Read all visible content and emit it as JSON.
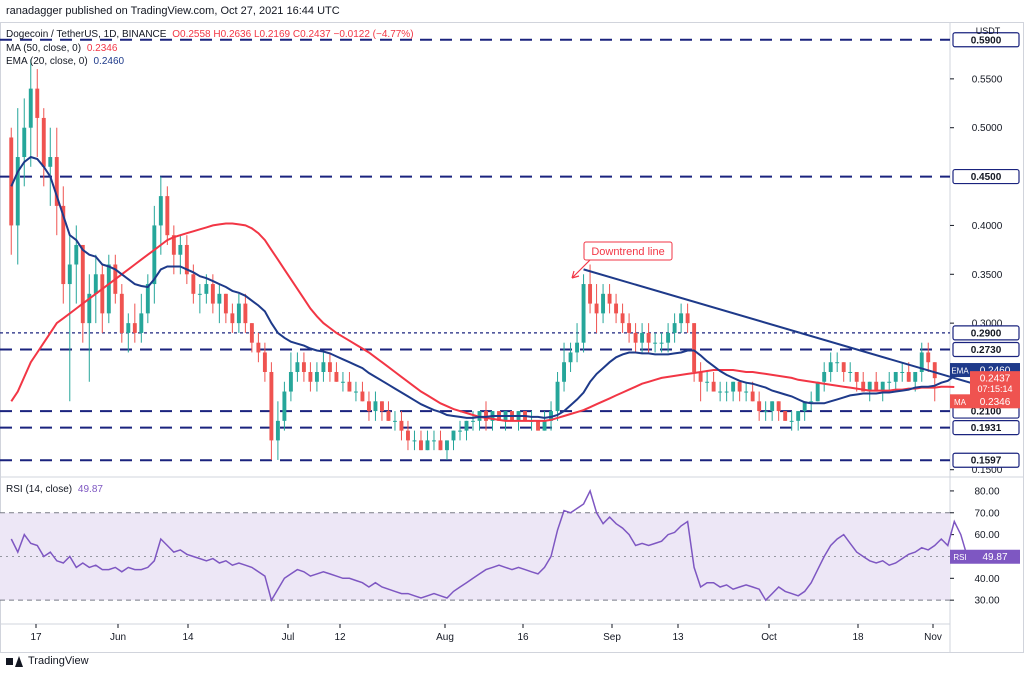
{
  "header": {
    "publisher": "ranadagger published on TradingView.com, Oct 27, 2021 16:44 UTC"
  },
  "legend": {
    "symbol": "Dogecoin / TetherUS, 1D, BINANCE",
    "ohlc": "O0.2558 H0.2636 L0.2169 C0.2437 −0.0122 (−4.77%)",
    "ma_label": "MA (50, close, 0)",
    "ma_value": "0.2346",
    "ema_label": "EMA (20, close, 0)",
    "ema_value": "0.2460"
  },
  "rsi_legend": {
    "label": "RSI (14, close)",
    "value": "49.87"
  },
  "footer": {
    "brand": "TradingView"
  },
  "colors": {
    "ema": "#1e3a8a",
    "ma": "#f23645",
    "up": "#26a69a",
    "down": "#ef5350",
    "level": "#1a237e",
    "rsi": "#7e57c2",
    "rsi_band": "#ede7f6"
  },
  "chart_data": {
    "type": "candlestick",
    "currency": "USDT",
    "y_range": [
      0.1497,
      0.6
    ],
    "price_ticks": [
      "0.5500",
      "0.5000",
      "0.4000",
      "0.3500",
      "0.3000",
      "0.1500"
    ],
    "x_ticks": [
      "17",
      "Jun",
      "14",
      "Jul",
      "12",
      "Aug",
      "16",
      "Sep",
      "13",
      "Oct",
      "18",
      "Nov"
    ],
    "levels": [
      {
        "price": 0.59,
        "label": "0.5900",
        "style": "dashed"
      },
      {
        "price": 0.45,
        "label": "0.4500",
        "style": "dashed"
      },
      {
        "price": 0.29,
        "label": "0.2900",
        "style": "dotted"
      },
      {
        "price": 0.273,
        "label": "0.2730",
        "style": "dashed"
      },
      {
        "price": 0.21,
        "label": "0.2100",
        "style": "dashed"
      },
      {
        "price": 0.1931,
        "label": "0.1931",
        "style": "dashed"
      },
      {
        "price": 0.1597,
        "label": "0.1597",
        "style": "dashed"
      }
    ],
    "annotation": {
      "text": "Downtrend line"
    },
    "price_tags": {
      "ema": {
        "label": "EMA",
        "value": "0.2460"
      },
      "last": {
        "value": "0.2437",
        "countdown": "07:15:14"
      },
      "ma": {
        "label": "MA",
        "value": "0.2346"
      }
    },
    "candles": [
      [
        0.49,
        0.5,
        0.37,
        0.4
      ],
      [
        0.4,
        0.52,
        0.36,
        0.47
      ],
      [
        0.47,
        0.53,
        0.44,
        0.5
      ],
      [
        0.5,
        0.57,
        0.46,
        0.54
      ],
      [
        0.54,
        0.56,
        0.47,
        0.51
      ],
      [
        0.51,
        0.52,
        0.44,
        0.46
      ],
      [
        0.46,
        0.5,
        0.42,
        0.47
      ],
      [
        0.47,
        0.5,
        0.39,
        0.42
      ],
      [
        0.42,
        0.44,
        0.32,
        0.34
      ],
      [
        0.34,
        0.39,
        0.22,
        0.36
      ],
      [
        0.36,
        0.4,
        0.32,
        0.38
      ],
      [
        0.38,
        0.38,
        0.28,
        0.3
      ],
      [
        0.3,
        0.35,
        0.24,
        0.33
      ],
      [
        0.33,
        0.37,
        0.3,
        0.35
      ],
      [
        0.35,
        0.36,
        0.29,
        0.31
      ],
      [
        0.31,
        0.37,
        0.3,
        0.36
      ],
      [
        0.36,
        0.37,
        0.32,
        0.33
      ],
      [
        0.33,
        0.34,
        0.28,
        0.29
      ],
      [
        0.29,
        0.31,
        0.27,
        0.3
      ],
      [
        0.3,
        0.32,
        0.28,
        0.29
      ],
      [
        0.29,
        0.33,
        0.28,
        0.31
      ],
      [
        0.31,
        0.35,
        0.3,
        0.34
      ],
      [
        0.34,
        0.42,
        0.32,
        0.4
      ],
      [
        0.4,
        0.45,
        0.37,
        0.43
      ],
      [
        0.43,
        0.44,
        0.38,
        0.39
      ],
      [
        0.39,
        0.4,
        0.35,
        0.37
      ],
      [
        0.37,
        0.39,
        0.35,
        0.38
      ],
      [
        0.38,
        0.39,
        0.34,
        0.35
      ],
      [
        0.35,
        0.36,
        0.32,
        0.33
      ],
      [
        0.33,
        0.34,
        0.31,
        0.33
      ],
      [
        0.33,
        0.35,
        0.32,
        0.34
      ],
      [
        0.34,
        0.35,
        0.31,
        0.32
      ],
      [
        0.32,
        0.34,
        0.3,
        0.33
      ],
      [
        0.33,
        0.33,
        0.3,
        0.31
      ],
      [
        0.31,
        0.32,
        0.29,
        0.3
      ],
      [
        0.3,
        0.33,
        0.29,
        0.32
      ],
      [
        0.32,
        0.33,
        0.29,
        0.3
      ],
      [
        0.3,
        0.3,
        0.27,
        0.28
      ],
      [
        0.28,
        0.29,
        0.26,
        0.27
      ],
      [
        0.27,
        0.28,
        0.24,
        0.25
      ],
      [
        0.25,
        0.26,
        0.16,
        0.18
      ],
      [
        0.18,
        0.22,
        0.16,
        0.2
      ],
      [
        0.2,
        0.24,
        0.19,
        0.23
      ],
      [
        0.23,
        0.27,
        0.22,
        0.25
      ],
      [
        0.25,
        0.27,
        0.24,
        0.26
      ],
      [
        0.26,
        0.27,
        0.24,
        0.25
      ],
      [
        0.25,
        0.26,
        0.23,
        0.24
      ],
      [
        0.24,
        0.26,
        0.23,
        0.25
      ],
      [
        0.25,
        0.27,
        0.24,
        0.26
      ],
      [
        0.26,
        0.27,
        0.24,
        0.25
      ],
      [
        0.25,
        0.26,
        0.24,
        0.24
      ],
      [
        0.24,
        0.25,
        0.23,
        0.24
      ],
      [
        0.24,
        0.25,
        0.23,
        0.23
      ],
      [
        0.23,
        0.24,
        0.22,
        0.23
      ],
      [
        0.23,
        0.24,
        0.22,
        0.22
      ],
      [
        0.22,
        0.23,
        0.2,
        0.21
      ],
      [
        0.21,
        0.23,
        0.2,
        0.22
      ],
      [
        0.22,
        0.22,
        0.2,
        0.21
      ],
      [
        0.21,
        0.22,
        0.2,
        0.2
      ],
      [
        0.2,
        0.21,
        0.19,
        0.2
      ],
      [
        0.2,
        0.21,
        0.18,
        0.19
      ],
      [
        0.19,
        0.2,
        0.17,
        0.18
      ],
      [
        0.18,
        0.19,
        0.17,
        0.18
      ],
      [
        0.18,
        0.19,
        0.17,
        0.17
      ],
      [
        0.17,
        0.19,
        0.17,
        0.18
      ],
      [
        0.18,
        0.19,
        0.17,
        0.18
      ],
      [
        0.18,
        0.19,
        0.17,
        0.17
      ],
      [
        0.17,
        0.18,
        0.16,
        0.18
      ],
      [
        0.18,
        0.19,
        0.17,
        0.19
      ],
      [
        0.19,
        0.2,
        0.18,
        0.19
      ],
      [
        0.19,
        0.2,
        0.18,
        0.2
      ],
      [
        0.2,
        0.21,
        0.19,
        0.2
      ],
      [
        0.2,
        0.21,
        0.19,
        0.21
      ],
      [
        0.21,
        0.22,
        0.19,
        0.2
      ],
      [
        0.2,
        0.21,
        0.19,
        0.21
      ],
      [
        0.21,
        0.21,
        0.2,
        0.2
      ],
      [
        0.2,
        0.21,
        0.19,
        0.21
      ],
      [
        0.21,
        0.21,
        0.2,
        0.2
      ],
      [
        0.2,
        0.21,
        0.19,
        0.21
      ],
      [
        0.21,
        0.21,
        0.2,
        0.2
      ],
      [
        0.2,
        0.21,
        0.19,
        0.2
      ],
      [
        0.2,
        0.2,
        0.19,
        0.19
      ],
      [
        0.19,
        0.21,
        0.19,
        0.2
      ],
      [
        0.2,
        0.22,
        0.19,
        0.21
      ],
      [
        0.21,
        0.25,
        0.2,
        0.24
      ],
      [
        0.24,
        0.28,
        0.23,
        0.26
      ],
      [
        0.26,
        0.28,
        0.25,
        0.27
      ],
      [
        0.27,
        0.3,
        0.26,
        0.28
      ],
      [
        0.28,
        0.35,
        0.27,
        0.34
      ],
      [
        0.34,
        0.36,
        0.31,
        0.32
      ],
      [
        0.32,
        0.34,
        0.29,
        0.31
      ],
      [
        0.31,
        0.34,
        0.3,
        0.33
      ],
      [
        0.33,
        0.34,
        0.31,
        0.32
      ],
      [
        0.32,
        0.33,
        0.3,
        0.31
      ],
      [
        0.31,
        0.32,
        0.29,
        0.3
      ],
      [
        0.3,
        0.31,
        0.28,
        0.29
      ],
      [
        0.29,
        0.3,
        0.27,
        0.28
      ],
      [
        0.28,
        0.3,
        0.27,
        0.29
      ],
      [
        0.29,
        0.3,
        0.27,
        0.28
      ],
      [
        0.28,
        0.29,
        0.27,
        0.28
      ],
      [
        0.28,
        0.29,
        0.27,
        0.28
      ],
      [
        0.28,
        0.3,
        0.27,
        0.29
      ],
      [
        0.29,
        0.31,
        0.28,
        0.3
      ],
      [
        0.3,
        0.32,
        0.29,
        0.31
      ],
      [
        0.31,
        0.32,
        0.29,
        0.3
      ],
      [
        0.3,
        0.3,
        0.24,
        0.25
      ],
      [
        0.25,
        0.26,
        0.22,
        0.24
      ],
      [
        0.24,
        0.25,
        0.23,
        0.24
      ],
      [
        0.24,
        0.25,
        0.23,
        0.23
      ],
      [
        0.23,
        0.24,
        0.22,
        0.23
      ],
      [
        0.23,
        0.24,
        0.22,
        0.23
      ],
      [
        0.23,
        0.24,
        0.22,
        0.24
      ],
      [
        0.24,
        0.24,
        0.22,
        0.23
      ],
      [
        0.23,
        0.24,
        0.22,
        0.23
      ],
      [
        0.23,
        0.24,
        0.22,
        0.22
      ],
      [
        0.22,
        0.23,
        0.2,
        0.21
      ],
      [
        0.21,
        0.22,
        0.2,
        0.21
      ],
      [
        0.21,
        0.22,
        0.2,
        0.22
      ],
      [
        0.22,
        0.22,
        0.2,
        0.21
      ],
      [
        0.21,
        0.21,
        0.2,
        0.2
      ],
      [
        0.2,
        0.21,
        0.19,
        0.2
      ],
      [
        0.2,
        0.21,
        0.19,
        0.21
      ],
      [
        0.21,
        0.22,
        0.2,
        0.22
      ],
      [
        0.22,
        0.23,
        0.21,
        0.22
      ],
      [
        0.22,
        0.24,
        0.22,
        0.24
      ],
      [
        0.24,
        0.26,
        0.23,
        0.25
      ],
      [
        0.25,
        0.27,
        0.24,
        0.26
      ],
      [
        0.26,
        0.27,
        0.25,
        0.26
      ],
      [
        0.26,
        0.26,
        0.24,
        0.25
      ],
      [
        0.25,
        0.26,
        0.24,
        0.25
      ],
      [
        0.25,
        0.25,
        0.23,
        0.24
      ],
      [
        0.24,
        0.25,
        0.23,
        0.23
      ],
      [
        0.23,
        0.24,
        0.22,
        0.24
      ],
      [
        0.24,
        0.25,
        0.23,
        0.23
      ],
      [
        0.23,
        0.24,
        0.22,
        0.24
      ],
      [
        0.24,
        0.25,
        0.23,
        0.24
      ],
      [
        0.24,
        0.25,
        0.23,
        0.25
      ],
      [
        0.25,
        0.26,
        0.24,
        0.25
      ],
      [
        0.25,
        0.26,
        0.24,
        0.24
      ],
      [
        0.24,
        0.25,
        0.23,
        0.25
      ],
      [
        0.25,
        0.28,
        0.24,
        0.27
      ],
      [
        0.27,
        0.28,
        0.25,
        0.26
      ],
      [
        0.26,
        0.26,
        0.22,
        0.2437
      ]
    ],
    "ema20": [
      0.44,
      0.455,
      0.465,
      0.47,
      0.468,
      0.46,
      0.45,
      0.43,
      0.41,
      0.39,
      0.385,
      0.375,
      0.37,
      0.368,
      0.36,
      0.358,
      0.355,
      0.35,
      0.345,
      0.34,
      0.338,
      0.337,
      0.345,
      0.355,
      0.358,
      0.358,
      0.358,
      0.355,
      0.352,
      0.348,
      0.346,
      0.343,
      0.34,
      0.337,
      0.333,
      0.331,
      0.328,
      0.323,
      0.318,
      0.312,
      0.3,
      0.29,
      0.285,
      0.281,
      0.279,
      0.277,
      0.274,
      0.272,
      0.271,
      0.269,
      0.266,
      0.263,
      0.26,
      0.257,
      0.254,
      0.249,
      0.245,
      0.241,
      0.237,
      0.233,
      0.229,
      0.225,
      0.221,
      0.217,
      0.214,
      0.211,
      0.209,
      0.206,
      0.205,
      0.204,
      0.203,
      0.203,
      0.204,
      0.204,
      0.205,
      0.205,
      0.205,
      0.205,
      0.205,
      0.205,
      0.204,
      0.204,
      0.203,
      0.204,
      0.206,
      0.21,
      0.216,
      0.222,
      0.229,
      0.24,
      0.248,
      0.254,
      0.26,
      0.265,
      0.268,
      0.27,
      0.27,
      0.269,
      0.269,
      0.268,
      0.268,
      0.268,
      0.269,
      0.27,
      0.272,
      0.272,
      0.267,
      0.261,
      0.256,
      0.251,
      0.247,
      0.244,
      0.241,
      0.239,
      0.238,
      0.236,
      0.234,
      0.231,
      0.229,
      0.227,
      0.225,
      0.222,
      0.219,
      0.218,
      0.218,
      0.218,
      0.22,
      0.222,
      0.224,
      0.226,
      0.227,
      0.228,
      0.228,
      0.228,
      0.229,
      0.229,
      0.23,
      0.231,
      0.232,
      0.234,
      0.235,
      0.235,
      0.236,
      0.239,
      0.241,
      0.246
    ],
    "ma50": [
      0.22,
      0.23,
      0.245,
      0.26,
      0.27,
      0.28,
      0.29,
      0.3,
      0.305,
      0.31,
      0.315,
      0.32,
      0.325,
      0.33,
      0.335,
      0.34,
      0.345,
      0.35,
      0.355,
      0.36,
      0.365,
      0.37,
      0.375,
      0.38,
      0.385,
      0.388,
      0.39,
      0.392,
      0.394,
      0.396,
      0.398,
      0.4,
      0.401,
      0.402,
      0.402,
      0.401,
      0.4,
      0.397,
      0.392,
      0.385,
      0.375,
      0.365,
      0.355,
      0.345,
      0.335,
      0.325,
      0.315,
      0.307,
      0.3,
      0.295,
      0.29,
      0.286,
      0.282,
      0.278,
      0.274,
      0.27,
      0.265,
      0.26,
      0.255,
      0.25,
      0.245,
      0.24,
      0.235,
      0.23,
      0.226,
      0.222,
      0.218,
      0.215,
      0.212,
      0.21,
      0.208,
      0.206,
      0.204,
      0.203,
      0.202,
      0.201,
      0.2,
      0.2,
      0.2,
      0.2,
      0.2,
      0.2,
      0.2,
      0.201,
      0.203,
      0.205,
      0.207,
      0.209,
      0.211,
      0.214,
      0.217,
      0.22,
      0.223,
      0.226,
      0.229,
      0.232,
      0.235,
      0.238,
      0.24,
      0.242,
      0.244,
      0.245,
      0.246,
      0.247,
      0.248,
      0.249,
      0.25,
      0.251,
      0.252,
      0.252,
      0.252,
      0.252,
      0.251,
      0.25,
      0.25,
      0.249,
      0.248,
      0.247,
      0.246,
      0.245,
      0.244,
      0.242,
      0.241,
      0.24,
      0.239,
      0.238,
      0.237,
      0.236,
      0.235,
      0.234,
      0.233,
      0.232,
      0.231,
      0.231,
      0.231,
      0.231,
      0.232,
      0.232,
      0.233,
      0.233,
      0.234,
      0.234,
      0.234,
      0.235,
      0.235,
      0.2346
    ],
    "downtrend_line": [
      [
        88,
        0.355
      ],
      [
        148,
        0.238
      ]
    ],
    "rsi": {
      "y_range": [
        20,
        85
      ],
      "ticks": [
        "80.00",
        "70.00",
        "60.00",
        "40.00",
        "30.00"
      ],
      "band": [
        30,
        70
      ],
      "mid": 50,
      "values": [
        58,
        52,
        60,
        56,
        55,
        50,
        52,
        48,
        47,
        50,
        45,
        47,
        45,
        46,
        44,
        44,
        45,
        43,
        45,
        44,
        44,
        45,
        48,
        58,
        55,
        52,
        53,
        51,
        50,
        49,
        48,
        49,
        47,
        48,
        46,
        47,
        46,
        45,
        43,
        41,
        30,
        35,
        40,
        42,
        44,
        43,
        41,
        42,
        43,
        42,
        41,
        40,
        40,
        39,
        38,
        36,
        38,
        36,
        35,
        34,
        33,
        33,
        32,
        31,
        32,
        33,
        32,
        31,
        34,
        36,
        38,
        40,
        42,
        44,
        45,
        46,
        45,
        44,
        45,
        44,
        43,
        42,
        45,
        50,
        62,
        71,
        70,
        72,
        74,
        80,
        70,
        65,
        68,
        65,
        63,
        60,
        55,
        56,
        55,
        56,
        57,
        60,
        61,
        64,
        66,
        45,
        36,
        38,
        38,
        36,
        37,
        35,
        36,
        37,
        36,
        35,
        30,
        33,
        36,
        34,
        33,
        32,
        34,
        38,
        44,
        50,
        55,
        58,
        60,
        56,
        52,
        50,
        48,
        47,
        48,
        46,
        47,
        49,
        51,
        52,
        54,
        53,
        55,
        58,
        55,
        66,
        60,
        49.87
      ]
    }
  }
}
